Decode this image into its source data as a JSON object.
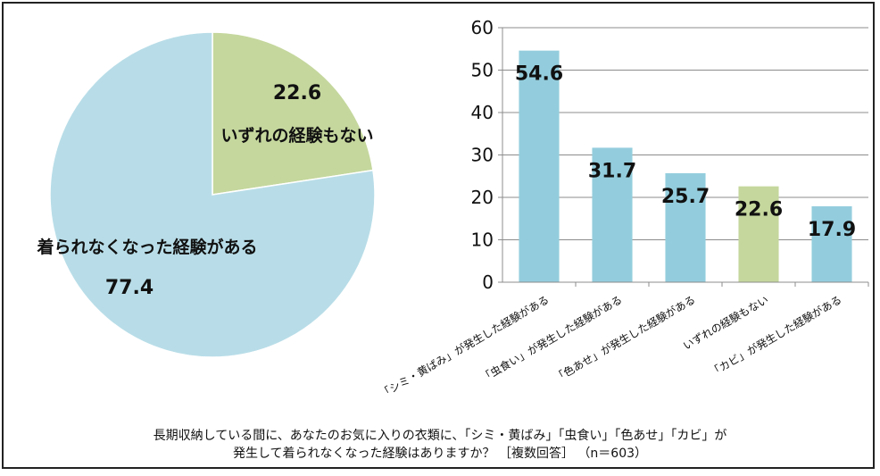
{
  "chart_data": [
    {
      "type": "pie",
      "slices": [
        {
          "label": "いずれの経験もない",
          "value": 22.6,
          "color": "#c5d79d"
        },
        {
          "label": "着られなくなった経験がある",
          "value": 77.4,
          "color": "#b8dde8"
        }
      ]
    },
    {
      "type": "bar",
      "categories": [
        "「シミ・黄ばみ」が発生した経験がある",
        "「虫食い」が発生した経験がある",
        "「色あせ」が発生した経験がある",
        "いずれの経験もない",
        "「カビ」が発生した経験がある"
      ],
      "values": [
        54.6,
        31.7,
        25.7,
        22.6,
        17.9
      ],
      "value_labels": [
        "54.6",
        "31.7",
        "25.7",
        "22.6",
        "17.9"
      ],
      "colors": [
        "#93cddd",
        "#93cddd",
        "#93cddd",
        "#c5d79d",
        "#93cddd"
      ],
      "ylim": [
        0,
        60
      ],
      "yticks": [
        "0",
        "10",
        "20",
        "30",
        "40",
        "50",
        "60"
      ],
      "grid": true
    }
  ],
  "caption": {
    "line1": "長期収納している間に、あなたのお気に入りの衣類に、「シミ・黄ばみ」「虫食い」「色あせ」「カビ」が",
    "line2": "発生して着られなくなった経験はありますか？ ［複数回答］ （n＝603）"
  }
}
